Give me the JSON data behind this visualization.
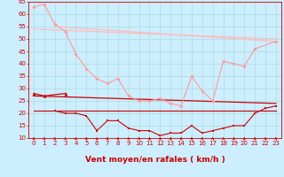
{
  "background_color": "#cceeff",
  "grid_color": "#aadddd",
  "xlabel": "Vent moyen/en rafales ( km/h )",
  "xlim": [
    -0.5,
    23.5
  ],
  "ylim": [
    10,
    65
  ],
  "yticks": [
    10,
    15,
    20,
    25,
    30,
    35,
    40,
    45,
    50,
    55,
    60,
    65
  ],
  "xticks": [
    0,
    1,
    2,
    3,
    4,
    5,
    6,
    7,
    8,
    9,
    10,
    11,
    12,
    13,
    14,
    15,
    16,
    17,
    18,
    19,
    20,
    21,
    22,
    23
  ],
  "tick_label_fontsize": 5.0,
  "xlabel_fontsize": 6.5,
  "tick_color": "#cc0000",
  "series_light_marker": {
    "x": [
      0,
      1,
      2,
      3,
      4,
      5,
      6,
      7,
      8,
      9,
      10,
      11,
      12,
      13,
      14,
      15,
      16,
      17,
      18,
      19,
      20,
      21,
      23
    ],
    "y": [
      63,
      64,
      56,
      53,
      44,
      38,
      34,
      32,
      34,
      27,
      25,
      25,
      26,
      24,
      23,
      35,
      29,
      25,
      41,
      40,
      39,
      46,
      49
    ],
    "color": "#ff9999",
    "linewidth": 0.8,
    "markersize": 2.0
  },
  "series_light_line1": {
    "x": [
      0,
      23
    ],
    "y": [
      54,
      50
    ],
    "color": "#ffbbbb",
    "linewidth": 0.9
  },
  "series_light_line2": {
    "x": [
      2,
      23
    ],
    "y": [
      55,
      49
    ],
    "color": "#ffbbbb",
    "linewidth": 0.9
  },
  "series_dark_diagonal": {
    "x": [
      0,
      23
    ],
    "y": [
      27,
      24
    ],
    "color": "#cc0000",
    "linewidth": 0.9
  },
  "series_dark_flat": {
    "x": [
      0,
      23
    ],
    "y": [
      21,
      21
    ],
    "color": "#cc0000",
    "linewidth": 0.8
  },
  "series_dark_triangle": {
    "x": [
      0,
      1,
      3
    ],
    "y": [
      28,
      27,
      28
    ],
    "color": "#cc0000",
    "linewidth": 0.9,
    "markersize": 3.0
  },
  "series_dark_square": {
    "x": [
      2,
      3,
      4,
      5,
      6,
      7,
      8,
      9,
      10,
      11,
      12,
      13,
      14,
      15,
      16,
      17,
      18,
      19,
      20,
      21,
      22,
      23
    ],
    "y": [
      21,
      20,
      20,
      19,
      13,
      17,
      17,
      14,
      13,
      13,
      11,
      12,
      12,
      15,
      12,
      13,
      14,
      15,
      15,
      20,
      22,
      23
    ],
    "color": "#cc0000",
    "linewidth": 0.8,
    "markersize": 2.0
  },
  "arrow_color": "#cc0000"
}
